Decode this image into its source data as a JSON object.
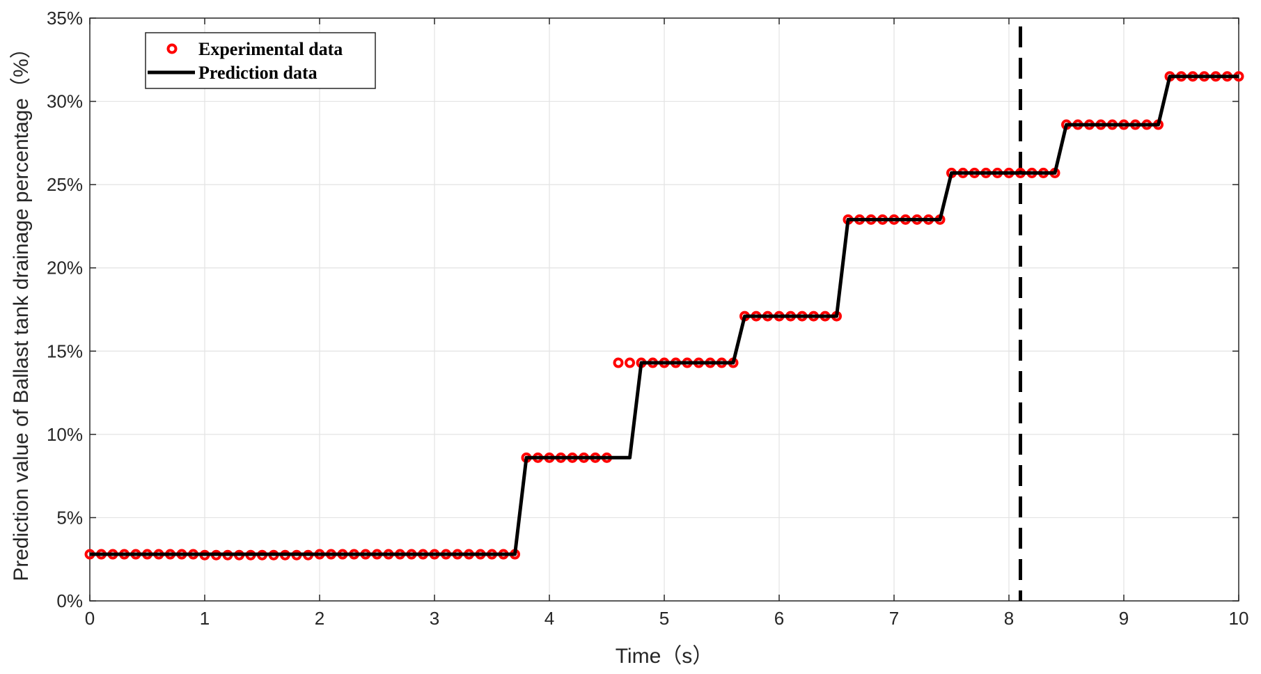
{
  "chart_data": {
    "type": "line",
    "xlabel": "Time（s）",
    "ylabel": "Prediction value of Ballast tank drainage percentage（%）",
    "xlim": [
      0,
      10
    ],
    "ylim": [
      0,
      35
    ],
    "x_ticks": [
      "0",
      "1",
      "2",
      "3",
      "4",
      "5",
      "6",
      "7",
      "8",
      "9",
      "10"
    ],
    "y_ticks": [
      "0%",
      "5%",
      "10%",
      "15%",
      "20%",
      "25%",
      "30%",
      "35%"
    ],
    "grid": true,
    "legend_position": "top-left",
    "vertical_marker_x": 8.1,
    "series": [
      {
        "name": "Experimental data",
        "style": "markers",
        "marker": "circle-open",
        "color": "#ff0000",
        "x": [
          0.0,
          0.1,
          0.2,
          0.3,
          0.4,
          0.5,
          0.6,
          0.7,
          0.8,
          0.9,
          1.0,
          1.1,
          1.2,
          1.3,
          1.4,
          1.5,
          1.6,
          1.7,
          1.8,
          1.9,
          2.0,
          2.1,
          2.2,
          2.3,
          2.4,
          2.5,
          2.6,
          2.7,
          2.8,
          2.9,
          3.0,
          3.1,
          3.2,
          3.3,
          3.4,
          3.5,
          3.6,
          3.7,
          3.8,
          3.9,
          4.0,
          4.1,
          4.2,
          4.3,
          4.4,
          4.5,
          4.6,
          4.7,
          4.8,
          4.9,
          5.0,
          5.1,
          5.2,
          5.3,
          5.4,
          5.5,
          5.6,
          5.7,
          5.8,
          5.9,
          6.0,
          6.1,
          6.2,
          6.3,
          6.4,
          6.5,
          6.6,
          6.7,
          6.8,
          6.9,
          7.0,
          7.1,
          7.2,
          7.3,
          7.4,
          7.5,
          7.6,
          7.7,
          7.8,
          7.9,
          8.0,
          8.1,
          8.2,
          8.3,
          8.4,
          8.5,
          8.6,
          8.7,
          8.8,
          8.9,
          9.0,
          9.1,
          9.2,
          9.3,
          9.4,
          9.5,
          9.6,
          9.7,
          9.8,
          9.9,
          10.0
        ],
        "y": [
          2.8,
          2.8,
          2.8,
          2.8,
          2.8,
          2.8,
          2.8,
          2.8,
          2.8,
          2.8,
          2.75,
          2.75,
          2.75,
          2.75,
          2.75,
          2.75,
          2.75,
          2.75,
          2.75,
          2.75,
          2.8,
          2.8,
          2.8,
          2.8,
          2.8,
          2.8,
          2.8,
          2.8,
          2.8,
          2.8,
          2.8,
          2.8,
          2.8,
          2.8,
          2.8,
          2.8,
          2.8,
          2.8,
          8.6,
          8.6,
          8.6,
          8.6,
          8.6,
          8.6,
          8.6,
          8.6,
          14.3,
          14.3,
          14.3,
          14.3,
          14.3,
          14.3,
          14.3,
          14.3,
          14.3,
          14.3,
          14.3,
          17.1,
          17.1,
          17.1,
          17.1,
          17.1,
          17.1,
          17.1,
          17.1,
          17.1,
          22.9,
          22.9,
          22.9,
          22.9,
          22.9,
          22.9,
          22.9,
          22.9,
          22.9,
          25.7,
          25.7,
          25.7,
          25.7,
          25.7,
          25.7,
          25.7,
          25.7,
          25.7,
          25.7,
          28.6,
          28.6,
          28.6,
          28.6,
          28.6,
          28.6,
          28.6,
          28.6,
          28.6,
          31.5,
          31.5,
          31.5,
          31.5,
          31.5,
          31.5,
          31.5
        ]
      },
      {
        "name": "Prediction data",
        "style": "line",
        "color": "#000000",
        "x": [
          0.0,
          3.7,
          3.8,
          4.7,
          4.8,
          5.6,
          5.7,
          6.5,
          6.6,
          7.4,
          7.5,
          8.4,
          8.5,
          9.3,
          9.4,
          10.0
        ],
        "y": [
          2.8,
          2.8,
          8.6,
          8.6,
          14.3,
          14.3,
          17.1,
          17.1,
          22.9,
          22.9,
          25.7,
          25.7,
          28.6,
          28.6,
          31.5,
          31.5
        ]
      }
    ]
  }
}
